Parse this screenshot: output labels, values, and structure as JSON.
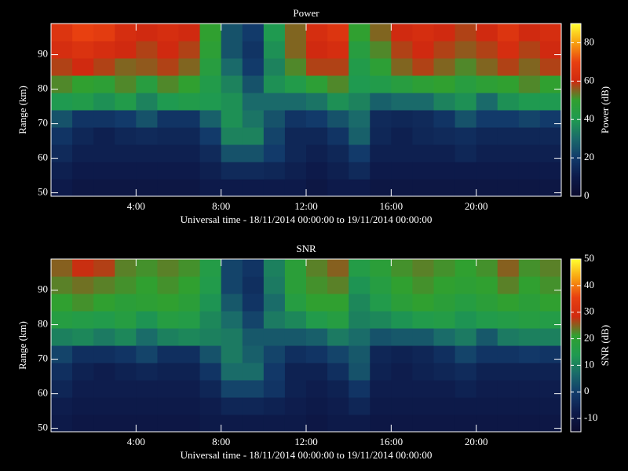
{
  "chart_data": [
    {
      "type": "heatmap",
      "title": "Power",
      "xlabel": "Universal time - 18/11/2014 00:00:00 to 19/11/2014 00:00:00",
      "ylabel": "Range (km)",
      "colorbar_label": "Power (dB)",
      "xlim": [
        0,
        24
      ],
      "ylim": [
        49,
        99
      ],
      "xticks": [
        {
          "value": 4,
          "label": "4:00"
        },
        {
          "value": 8,
          "label": "8:00"
        },
        {
          "value": 12,
          "label": "12:00"
        },
        {
          "value": 16,
          "label": "16:00"
        },
        {
          "value": 20,
          "label": "20:00"
        }
      ],
      "yticks": [
        50,
        60,
        70,
        80,
        90
      ],
      "zlim": [
        0,
        90
      ],
      "zticks": [
        0,
        20,
        40,
        60,
        80
      ],
      "colormap": [
        "#0b0b2e",
        "#0d1a4a",
        "#123a6a",
        "#1a6a6a",
        "#1f9a50",
        "#30a030",
        "#d02a10",
        "#e84010",
        "#f8a010",
        "#ffff30"
      ],
      "xbins": [
        0,
        1,
        2,
        3,
        4,
        5,
        6,
        7,
        8,
        9,
        10,
        11,
        12,
        13,
        14,
        15,
        16,
        17,
        18,
        19,
        20,
        21,
        22,
        23,
        24
      ],
      "ybins": [
        49,
        54,
        59,
        64,
        69,
        74,
        79,
        84,
        89,
        94,
        99
      ],
      "z": [
        [
          10,
          8,
          8,
          8,
          8,
          8,
          8,
          10,
          10,
          10,
          10,
          10,
          8,
          10,
          10,
          8,
          8,
          8,
          8,
          8,
          8,
          8,
          8,
          8
        ],
        [
          12,
          10,
          10,
          10,
          10,
          10,
          10,
          12,
          15,
          15,
          14,
          12,
          10,
          12,
          15,
          10,
          10,
          10,
          10,
          10,
          10,
          10,
          10,
          10
        ],
        [
          15,
          12,
          12,
          12,
          12,
          12,
          12,
          15,
          25,
          25,
          20,
          14,
          12,
          14,
          20,
          12,
          12,
          12,
          12,
          14,
          12,
          12,
          12,
          12
        ],
        [
          18,
          14,
          12,
          14,
          15,
          14,
          14,
          20,
          35,
          35,
          22,
          14,
          14,
          18,
          28,
          14,
          12,
          14,
          15,
          16,
          14,
          14,
          14,
          14
        ],
        [
          25,
          18,
          18,
          20,
          25,
          18,
          18,
          28,
          38,
          32,
          25,
          18,
          20,
          25,
          30,
          15,
          14,
          15,
          18,
          25,
          20,
          20,
          22,
          20
        ],
        [
          40,
          42,
          38,
          42,
          35,
          40,
          42,
          40,
          38,
          30,
          30,
          30,
          32,
          38,
          35,
          28,
          30,
          30,
          35,
          38,
          30,
          38,
          40,
          40
        ],
        [
          52,
          50,
          48,
          52,
          45,
          52,
          50,
          42,
          35,
          25,
          38,
          42,
          48,
          52,
          40,
          42,
          45,
          48,
          50,
          45,
          48,
          50,
          52,
          50
        ],
        [
          58,
          60,
          58,
          55,
          56,
          58,
          55,
          45,
          30,
          20,
          35,
          52,
          58,
          58,
          42,
          48,
          55,
          58,
          55,
          52,
          55,
          58,
          55,
          58
        ],
        [
          62,
          64,
          62,
          60,
          58,
          60,
          58,
          48,
          25,
          18,
          38,
          55,
          60,
          62,
          45,
          52,
          58,
          60,
          58,
          56,
          58,
          62,
          58,
          60
        ],
        [
          65,
          70,
          68,
          62,
          60,
          62,
          60,
          50,
          25,
          20,
          40,
          55,
          62,
          65,
          50,
          55,
          60,
          62,
          60,
          58,
          60,
          65,
          60,
          62
        ]
      ]
    },
    {
      "type": "heatmap",
      "title": "SNR",
      "xlabel": "Universal time - 18/11/2014 00:00:00 to 19/11/2014 00:00:00",
      "ylabel": "Range (km)",
      "colorbar_label": "SNR (dB)",
      "xlim": [
        0,
        24
      ],
      "ylim": [
        49,
        99
      ],
      "xticks": [
        {
          "value": 4,
          "label": "4:00"
        },
        {
          "value": 8,
          "label": "8:00"
        },
        {
          "value": 12,
          "label": "12:00"
        },
        {
          "value": 16,
          "label": "16:00"
        },
        {
          "value": 20,
          "label": "20:00"
        }
      ],
      "yticks": [
        50,
        60,
        70,
        80,
        90
      ],
      "zlim": [
        -15,
        50
      ],
      "zticks": [
        -10,
        0,
        10,
        20,
        30,
        40,
        50
      ],
      "colormap": [
        "#0b0b2e",
        "#0d1a4a",
        "#123a6a",
        "#1a6a6a",
        "#1f9a50",
        "#30a030",
        "#d02a10",
        "#e84010",
        "#f8a010",
        "#ffff30"
      ],
      "xbins": [
        0,
        1,
        2,
        3,
        4,
        5,
        6,
        7,
        8,
        9,
        10,
        11,
        12,
        13,
        14,
        15,
        16,
        17,
        18,
        19,
        20,
        21,
        22,
        23,
        24
      ],
      "ybins": [
        49,
        54,
        59,
        64,
        69,
        74,
        79,
        84,
        89,
        94,
        99
      ],
      "z": [
        [
          -8,
          -9,
          -9,
          -9,
          -9,
          -9,
          -9,
          -8,
          -8,
          -8,
          -8,
          -8,
          -9,
          -8,
          -8,
          -9,
          -9,
          -9,
          -9,
          -9,
          -9,
          -9,
          -9,
          -9
        ],
        [
          -7,
          -8,
          -8,
          -8,
          -8,
          -8,
          -8,
          -7,
          -5,
          -5,
          -6,
          -7,
          -8,
          -7,
          -5,
          -8,
          -8,
          -8,
          -8,
          -8,
          -8,
          -8,
          -8,
          -8
        ],
        [
          -5,
          -7,
          -7,
          -7,
          -7,
          -7,
          -7,
          -5,
          1,
          1,
          -2,
          -6,
          -7,
          -6,
          -2,
          -7,
          -7,
          -7,
          -7,
          -6,
          -7,
          -7,
          -7,
          -7
        ],
        [
          -3,
          -6,
          -7,
          -6,
          -5,
          -6,
          -6,
          -2,
          7,
          7,
          -1,
          -6,
          -6,
          -3,
          3,
          -6,
          -7,
          -6,
          -5,
          -4,
          -6,
          -6,
          -6,
          -6
        ],
        [
          1,
          -3,
          -3,
          -2,
          1,
          -3,
          -3,
          3,
          9,
          5,
          1,
          -3,
          -2,
          1,
          4,
          -5,
          -6,
          -5,
          -3,
          1,
          -2,
          -2,
          -1,
          -2
        ],
        [
          10,
          11,
          9,
          11,
          7,
          10,
          11,
          10,
          9,
          4,
          4,
          4,
          5,
          9,
          7,
          3,
          4,
          4,
          7,
          9,
          4,
          9,
          10,
          10
        ],
        [
          17,
          16,
          15,
          17,
          13,
          17,
          16,
          11,
          7,
          1,
          9,
          11,
          15,
          17,
          10,
          11,
          13,
          15,
          16,
          13,
          15,
          16,
          17,
          16
        ],
        [
          21,
          22,
          21,
          19,
          20,
          21,
          19,
          13,
          4,
          -2,
          7,
          17,
          21,
          21,
          11,
          15,
          19,
          21,
          19,
          17,
          19,
          21,
          19,
          21
        ],
        [
          23,
          24,
          23,
          22,
          21,
          22,
          21,
          15,
          1,
          -3,
          9,
          19,
          22,
          23,
          13,
          17,
          21,
          22,
          21,
          20,
          21,
          23,
          21,
          22
        ],
        [
          25,
          28,
          27,
          23,
          22,
          23,
          22,
          16,
          1,
          -2,
          10,
          19,
          23,
          25,
          16,
          19,
          22,
          23,
          22,
          21,
          22,
          25,
          22,
          23
        ]
      ]
    }
  ]
}
